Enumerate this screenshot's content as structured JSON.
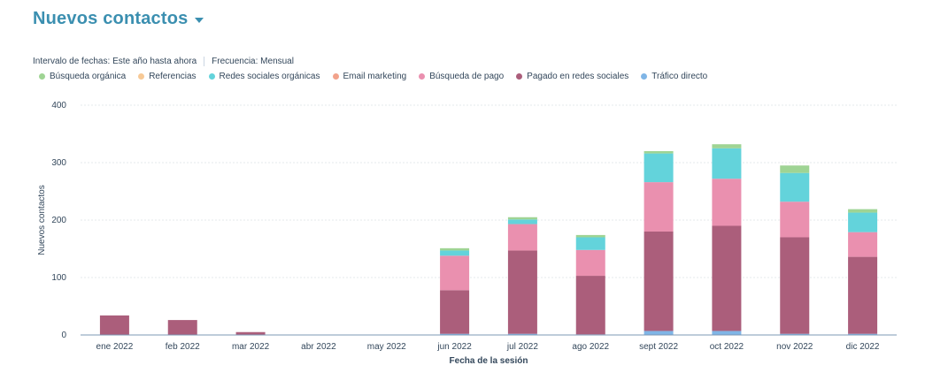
{
  "header": {
    "title": "Nuevos contactos",
    "date_range_label": "Intervalo de fechas:",
    "date_range_value": "Este año hasta ahora",
    "frequency_label": "Frecuencia:",
    "frequency_value": "Mensual"
  },
  "colors": {
    "grid": "#e5e8eb",
    "axis_text": "#33475b"
  },
  "chart_data": {
    "type": "bar",
    "stacked": true,
    "xlabel": "Fecha de la sesión",
    "ylabel": "Nuevos contactos",
    "ylim": [
      0,
      400
    ],
    "yticks": [
      0,
      100,
      200,
      300,
      400
    ],
    "grid": true,
    "legend_position": "top-left",
    "categories": [
      "ene 2022",
      "feb 2022",
      "mar 2022",
      "abr 2022",
      "may 2022",
      "jun 2022",
      "jul 2022",
      "ago 2022",
      "sept 2022",
      "oct 2022",
      "nov 2022",
      "dic 2022"
    ],
    "series": [
      {
        "name": "Tráfico directo",
        "color": "#7fb5e6",
        "values": [
          0,
          0,
          0,
          0,
          0,
          2,
          2,
          1,
          7,
          7,
          2,
          2
        ]
      },
      {
        "name": "Pagado en redes sociales",
        "color": "#ab5e7b",
        "values": [
          34,
          26,
          5,
          0,
          0,
          76,
          145,
          102,
          173,
          183,
          168,
          134
        ]
      },
      {
        "name": "Búsqueda de pago",
        "color": "#ea90af",
        "values": [
          0,
          0,
          0,
          0,
          0,
          60,
          46,
          45,
          86,
          82,
          62,
          43
        ]
      },
      {
        "name": "Email marketing",
        "color": "#f2a28b",
        "values": [
          0,
          0,
          0,
          0,
          0,
          0,
          0,
          0,
          0,
          0,
          0,
          0
        ]
      },
      {
        "name": "Redes sociales orgánicas",
        "color": "#63d3db",
        "values": [
          0,
          0,
          0,
          0,
          0,
          9,
          8,
          22,
          50,
          53,
          50,
          34
        ]
      },
      {
        "name": "Referencias",
        "color": "#f7c996",
        "values": [
          0,
          0,
          0,
          0,
          0,
          0,
          0,
          0,
          0,
          0,
          0,
          0
        ]
      },
      {
        "name": "Búsqueda orgánica",
        "color": "#9fd494",
        "values": [
          0,
          0,
          0,
          0,
          0,
          4,
          4,
          4,
          4,
          7,
          13,
          6
        ]
      }
    ],
    "legend_order": [
      "Búsqueda orgánica",
      "Referencias",
      "Redes sociales orgánicas",
      "Email marketing",
      "Búsqueda de pago",
      "Pagado en redes sociales",
      "Tráfico directo"
    ]
  }
}
